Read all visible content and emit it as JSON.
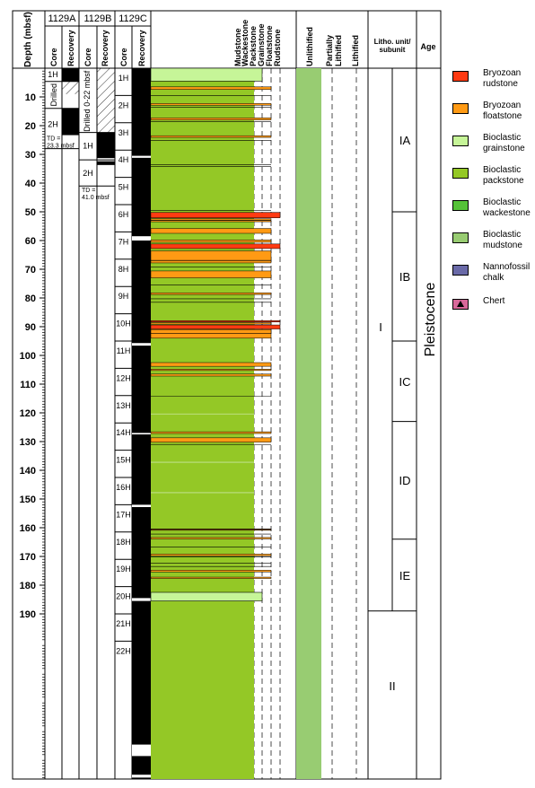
{
  "headers": {
    "depth": "Depth (mbsf)",
    "holes": [
      "1129A",
      "1129B",
      "1129C"
    ],
    "core": "Core",
    "recovery": "Recovery",
    "textures": [
      "Mudstone",
      "Wackestone",
      "Packstone",
      "Grainstone",
      "Floatstone",
      "Rudstone"
    ],
    "lithification": [
      "Unlithified",
      "Partially\nLithified",
      "Lithified"
    ],
    "unit": "Litho. unit/\nsubunit",
    "age": "Age"
  },
  "depth_ticks": [
    "10",
    "20",
    "30",
    "40",
    "50",
    "60",
    "70",
    "80",
    "90",
    "100",
    "110",
    "120",
    "130",
    "140",
    "150",
    "160",
    "170",
    "180",
    "190"
  ],
  "hole_1129A": {
    "cores": [
      "1H",
      "Drilled",
      "2H"
    ],
    "td": "TD =\n23.3 mbsf"
  },
  "hole_1129B": {
    "drilled_note": "Drilled 0-22 mbsf",
    "cores": [
      "1H",
      "2H"
    ],
    "td": "TD =\n41.0 mbsf"
  },
  "hole_1129C": {
    "cores": [
      "1H",
      "2H",
      "3H",
      "4H",
      "5H",
      "6H",
      "7H",
      "8H",
      "9H",
      "10H",
      "11H",
      "12H",
      "13H",
      "14H",
      "15H",
      "16H",
      "17H",
      "18H",
      "19H",
      "20H",
      "21H",
      "22H"
    ]
  },
  "units": {
    "unit": "I",
    "unit_lower": "II",
    "subunits": [
      "IA",
      "IB",
      "IC",
      "ID",
      "IE"
    ]
  },
  "age": "Pleistocene",
  "legend": [
    {
      "label": "Bryozoan\nrudstone",
      "color": "#ff3a12"
    },
    {
      "label": "Bryozoan\nfloatstone",
      "color": "#ff9a14"
    },
    {
      "label": "Bioclastic\ngrainstone",
      "color": "#c6f598"
    },
    {
      "label": "Bioclastic\npackstone",
      "color": "#94c826"
    },
    {
      "label": "Bioclastic\nwackestone",
      "color": "#55c238"
    },
    {
      "label": "Bioclastic\nmudstone",
      "color": "#98cc72"
    },
    {
      "label": "Nannofossil\nchalk",
      "color": "#6a6aa8"
    },
    {
      "label": "Chert",
      "color": "#d8689a"
    }
  ]
}
